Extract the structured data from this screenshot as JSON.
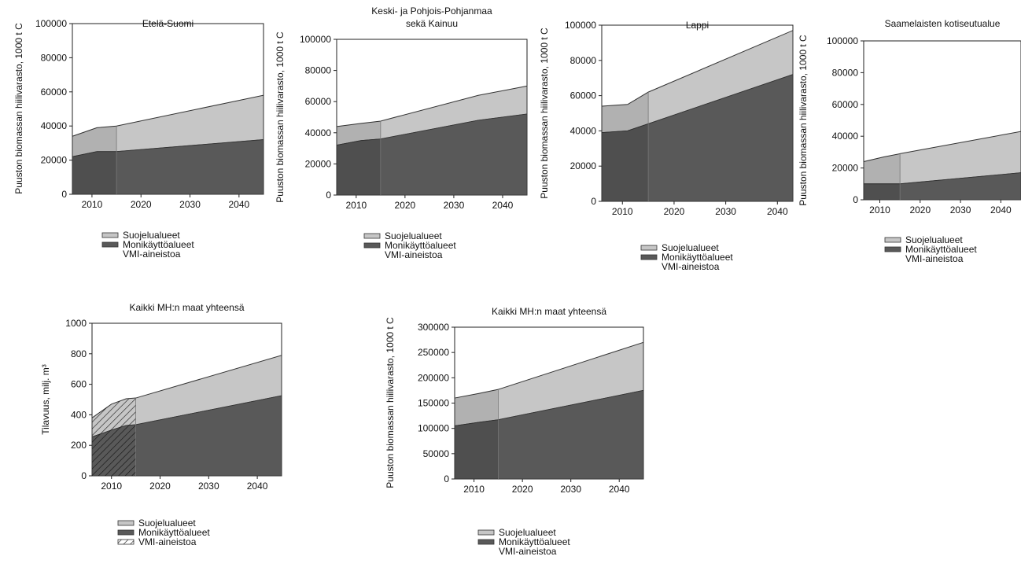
{
  "colors": {
    "suojelu": "#c6c6c6",
    "monikaytto": "#595959",
    "vmi_overlay": "#b0b0b0",
    "outline": "#333333"
  },
  "chart_data": [
    {
      "type": "area",
      "title": "Etelä-Suomi",
      "ylabel": "Puuston biomassan hiilivarasto, 1000 t C",
      "xlim": [
        2006,
        2045
      ],
      "ylim": [
        0,
        100000
      ],
      "yticks": [
        0,
        20000,
        40000,
        60000,
        80000,
        100000
      ],
      "xticks": [
        2010,
        2020,
        2030,
        2040
      ],
      "vmi_end": 2015,
      "x": [
        2006,
        2011,
        2015,
        2045
      ],
      "series": [
        {
          "name": "Monikäyttöalueet",
          "values": [
            22000,
            25000,
            25000,
            32000
          ]
        },
        {
          "name": "Suojelualueet",
          "values": [
            12000,
            14000,
            15000,
            26000
          ]
        }
      ],
      "legend": [
        "Suojelualueet",
        "Monikäyttöalueet",
        "VMI-aineistoa"
      ]
    },
    {
      "type": "area",
      "title": "Keski- ja Pohjois-Pohjanmaa sekä Kainuu",
      "title_lines": [
        "Keski- ja Pohjois-Pohjanmaa",
        "sekä Kainuu"
      ],
      "ylabel": "Puuston biomassan hiilivarasto, 1000 t C",
      "xlim": [
        2006,
        2045
      ],
      "ylim": [
        0,
        100000
      ],
      "yticks": [
        0,
        20000,
        40000,
        60000,
        80000,
        100000
      ],
      "xticks": [
        2010,
        2020,
        2030,
        2040
      ],
      "vmi_end": 2015,
      "x": [
        2006,
        2011,
        2015,
        2035,
        2045
      ],
      "series": [
        {
          "name": "Monikäyttöalueet",
          "values": [
            32000,
            35000,
            36000,
            48000,
            52000
          ]
        },
        {
          "name": "Suojelualueet",
          "values": [
            12000,
            11000,
            11500,
            16000,
            18000
          ]
        }
      ],
      "legend": [
        "Suojelualueet",
        "Monikäyttöalueet",
        "VMI-aineistoa"
      ]
    },
    {
      "type": "area",
      "title": "Lappi",
      "ylabel": "Puuston biomassan hiilivarasto, 1000 t C",
      "xlim": [
        2006,
        2043
      ],
      "ylim": [
        0,
        100000
      ],
      "yticks": [
        0,
        20000,
        40000,
        60000,
        80000,
        100000
      ],
      "xticks": [
        2010,
        2020,
        2030,
        2040
      ],
      "vmi_end": 2015,
      "x": [
        2006,
        2011,
        2015,
        2043
      ],
      "series": [
        {
          "name": "Monikäyttöalueet",
          "values": [
            39000,
            40000,
            44000,
            72000
          ]
        },
        {
          "name": "Suojelualueet",
          "values": [
            15000,
            15000,
            18000,
            25000
          ]
        }
      ],
      "legend": [
        "Suojelualueet",
        "Monikäyttöalueet",
        "VMI-aineistoa"
      ]
    },
    {
      "type": "area",
      "title": "Saamelaisten kotiseutualue",
      "ylabel": "Puuston biomassan hiilivarasto, 1000 t C",
      "xlim": [
        2006,
        2045
      ],
      "ylim": [
        0,
        100000
      ],
      "yticks": [
        0,
        20000,
        40000,
        60000,
        80000,
        100000
      ],
      "xticks": [
        2010,
        2020,
        2030,
        2040
      ],
      "vmi_end": 2015,
      "x": [
        2006,
        2011,
        2015,
        2045
      ],
      "series": [
        {
          "name": "Monikäyttöalueet",
          "values": [
            10000,
            10000,
            10000,
            17000
          ]
        },
        {
          "name": "Suojelualueet",
          "values": [
            14000,
            17000,
            19000,
            26000
          ]
        }
      ],
      "legend": [
        "Suojelualueet",
        "Monikäyttöalueet",
        "VMI-aineistoa"
      ]
    },
    {
      "type": "area",
      "title": "Kaikki MH:n maat yhteensä",
      "ylabel": "Tilavuus, milj. m³",
      "xlim": [
        2006,
        2045
      ],
      "ylim": [
        0,
        1000
      ],
      "yticks": [
        0,
        200,
        400,
        600,
        800,
        1000
      ],
      "xticks": [
        2010,
        2020,
        2030,
        2040
      ],
      "vmi_end": 2015,
      "vmi_hatched": true,
      "x": [
        2006,
        2010,
        2013,
        2015,
        2045
      ],
      "series": [
        {
          "name": "Monikäyttöalueet",
          "values": [
            255,
            300,
            330,
            335,
            525
          ]
        },
        {
          "name": "Suojelualueet",
          "values": [
            125,
            170,
            175,
            175,
            265
          ]
        }
      ],
      "legend": [
        "Suojelualueet",
        "Monikäyttöalueet",
        "VMI-aineistoa"
      ]
    },
    {
      "type": "area",
      "title": "Kaikki MH:n maat yhteensä",
      "ylabel": "Puuston biomassan hiilivarasto, 1000 t C",
      "xlim": [
        2006,
        2045
      ],
      "ylim": [
        0,
        300000
      ],
      "yticks": [
        0,
        50000,
        100000,
        150000,
        200000,
        250000,
        300000
      ],
      "xticks": [
        2010,
        2020,
        2030,
        2040
      ],
      "vmi_end": 2015,
      "x": [
        2006,
        2011,
        2015,
        2045
      ],
      "series": [
        {
          "name": "Monikäyttöalueet",
          "values": [
            105000,
            112000,
            117000,
            175000
          ]
        },
        {
          "name": "Suojelualueet",
          "values": [
            55000,
            57000,
            60000,
            95000
          ]
        }
      ],
      "legend": [
        "Suojelualueet",
        "Monikäyttöalueet",
        "VMI-aineistoa"
      ]
    }
  ]
}
